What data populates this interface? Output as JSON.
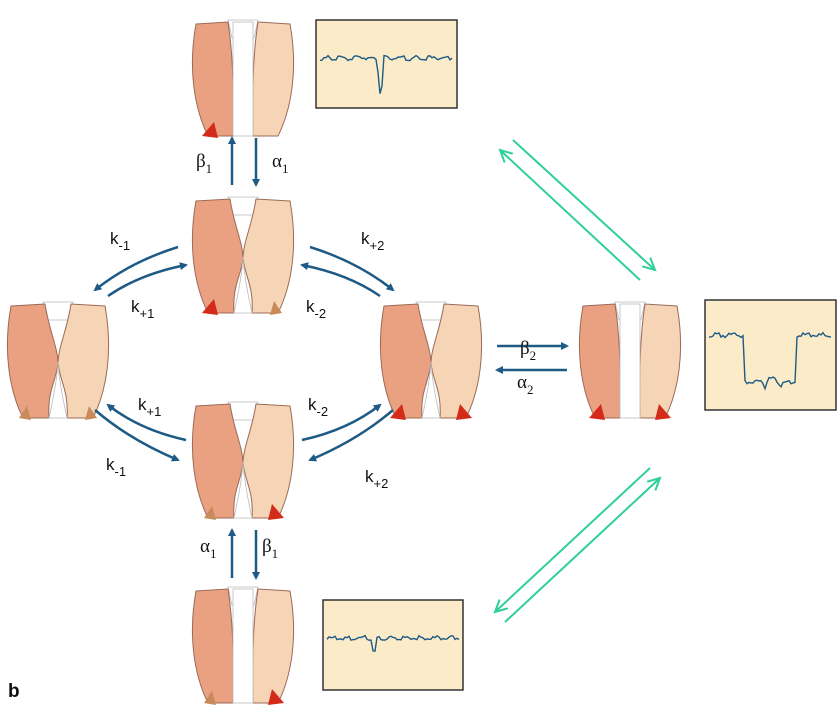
{
  "rate_labels": [
    {
      "symbol": "β",
      "sub": "1"
    },
    {
      "symbol": "α",
      "sub": "1"
    },
    {
      "symbol": "k",
      "sub": "-1"
    },
    {
      "symbol": "k",
      "sub": "+1"
    },
    {
      "symbol": "k",
      "sub": "+2"
    },
    {
      "symbol": "k",
      "sub": "-2"
    },
    {
      "symbol": "k",
      "sub": "+1"
    },
    {
      "symbol": "k",
      "sub": "-1"
    },
    {
      "symbol": "k",
      "sub": "-2"
    },
    {
      "symbol": "k",
      "sub": "+2"
    },
    {
      "symbol": "β",
      "sub": "2"
    },
    {
      "symbol": "α",
      "sub": "2"
    },
    {
      "symbol": "α",
      "sub": "1"
    },
    {
      "symbol": "β",
      "sub": "1"
    }
  ],
  "panel_label": "b"
}
